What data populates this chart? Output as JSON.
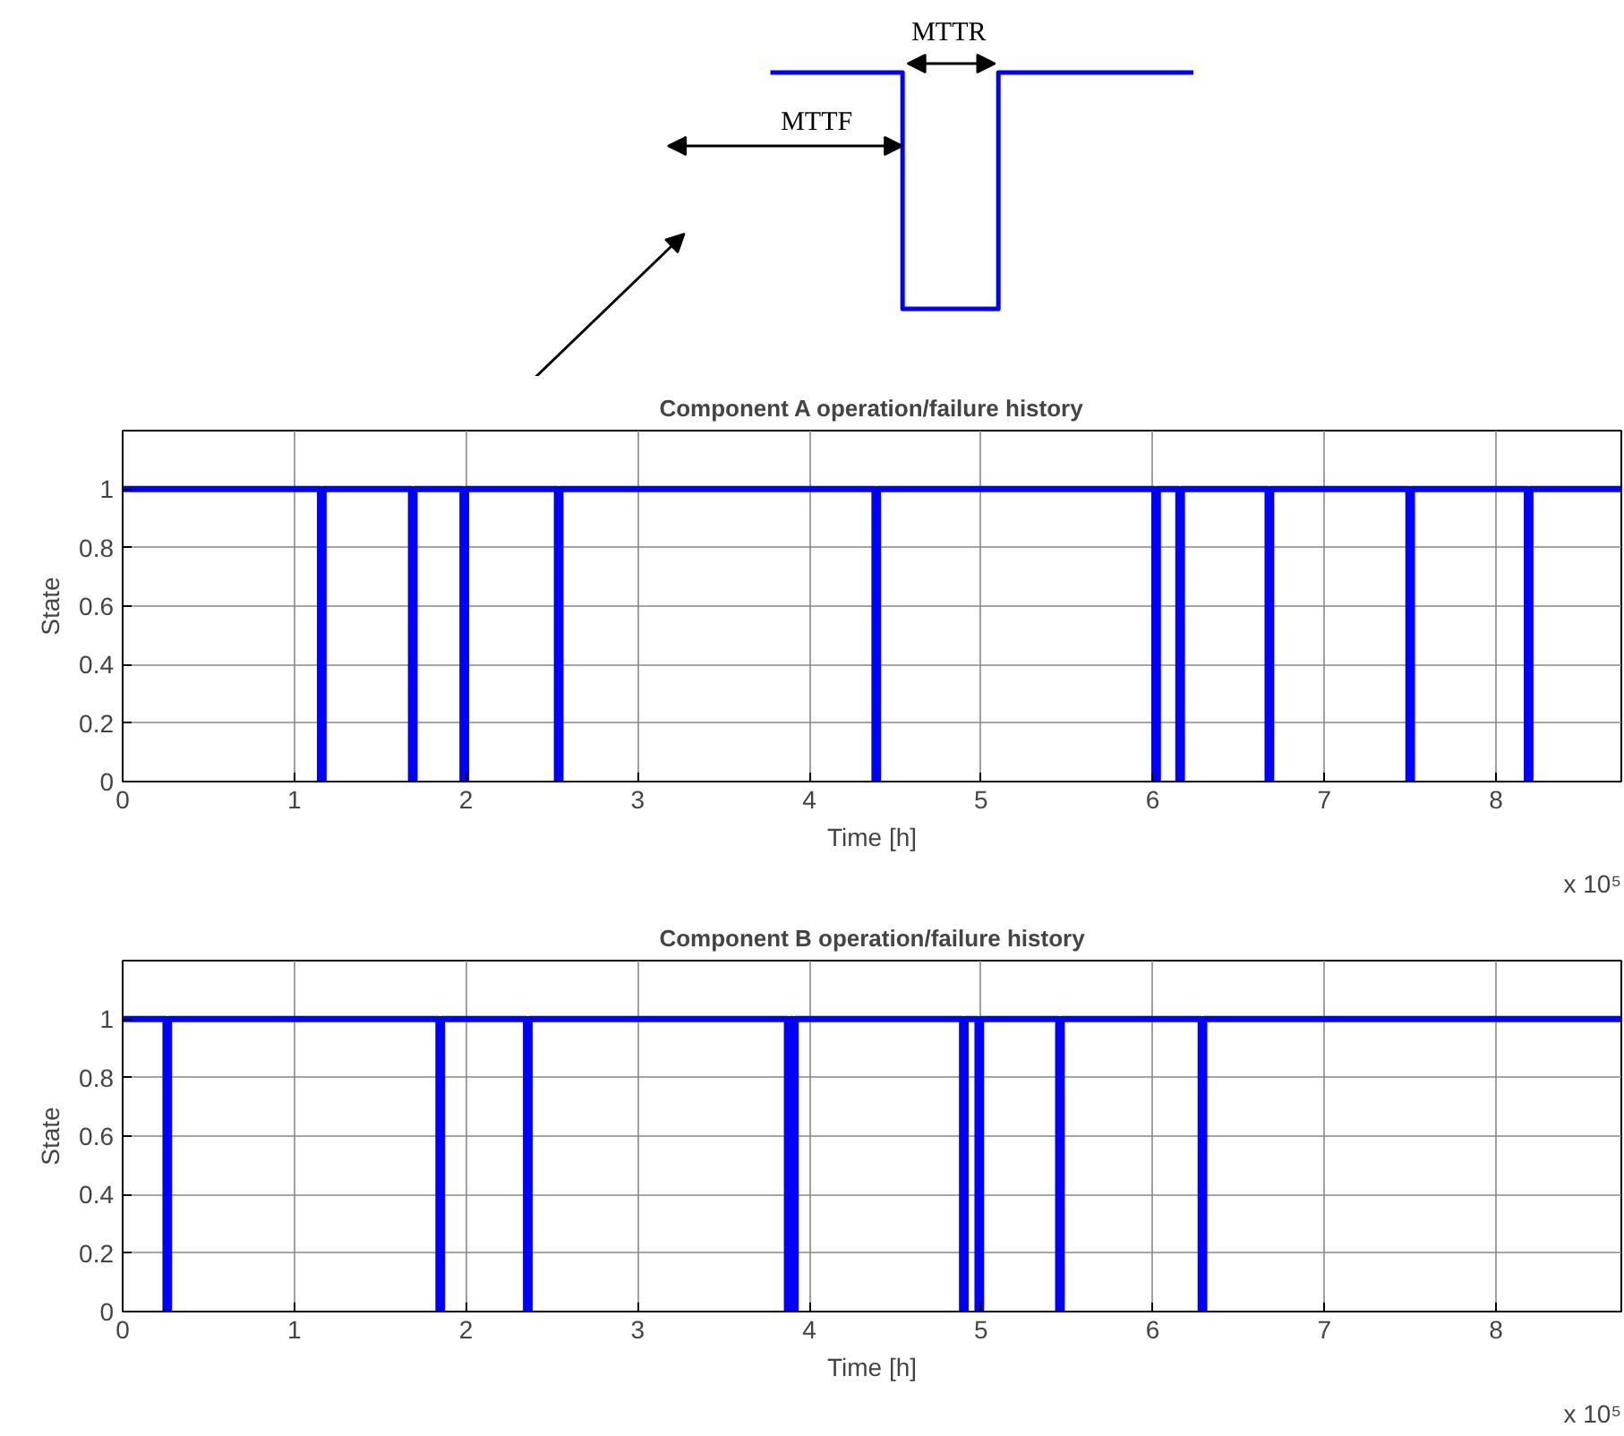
{
  "chart_data": [
    {
      "type": "step",
      "title": "Component A operation/failure history",
      "xlabel": "Time [h]",
      "ylabel": "State",
      "annotations": [
        "x 10⁵",
        "MTTF",
        "MTTR"
      ],
      "series": [
        {
          "color": "#0000ff",
          "x": [
            0,
            1.15,
            1.17,
            1.68,
            1.7,
            1.98,
            2.0,
            2.53,
            2.55,
            4.38,
            4.4,
            6.01,
            6.03,
            6.15,
            6.17,
            6.67,
            6.69,
            7.49,
            7.51,
            8.18,
            8.2,
            8.73
          ],
          "values": [
            1,
            0,
            1,
            0,
            1,
            0,
            1,
            0,
            1,
            0,
            1,
            0,
            1,
            0,
            1,
            0,
            1,
            0,
            1,
            0,
            1,
            1
          ]
        }
      ],
      "xlim": [
        0,
        8.73
      ],
      "ylim": [
        0,
        1.2
      ],
      "xticks": [
        0,
        1,
        2,
        3,
        4,
        5,
        6,
        7,
        8
      ],
      "yticks": [
        0,
        0.2,
        0.4,
        0.6,
        0.8,
        1
      ],
      "grid": true,
      "line_style": "solid",
      "marker": "none"
    },
    {
      "type": "step",
      "title": "Component B operation/failure history",
      "xlabel": "Time [h]",
      "ylabel": "State",
      "annotations": [
        "x 10⁵"
      ],
      "series": [
        {
          "color": "#0000ff",
          "x": [
            0,
            0.25,
            0.27,
            1.84,
            1.86,
            2.35,
            2.37,
            3.87,
            3.89,
            3.9,
            3.92,
            4.89,
            4.91,
            4.98,
            5.0,
            5.45,
            5.47,
            6.28,
            6.3,
            8.73
          ],
          "values": [
            1,
            0,
            1,
            0,
            1,
            0,
            1,
            0,
            1,
            0,
            1,
            0,
            1,
            0,
            1,
            0,
            1,
            0,
            1,
            1
          ]
        }
      ],
      "xlim": [
        0,
        8.73
      ],
      "ylim": [
        0,
        1.2
      ],
      "xticks": [
        0,
        1,
        2,
        3,
        4,
        5,
        6,
        7,
        8
      ],
      "yticks": [
        0,
        0.2,
        0.4,
        0.6,
        0.8,
        1
      ],
      "grid": true,
      "line_style": "solid",
      "marker": "none"
    }
  ]
}
